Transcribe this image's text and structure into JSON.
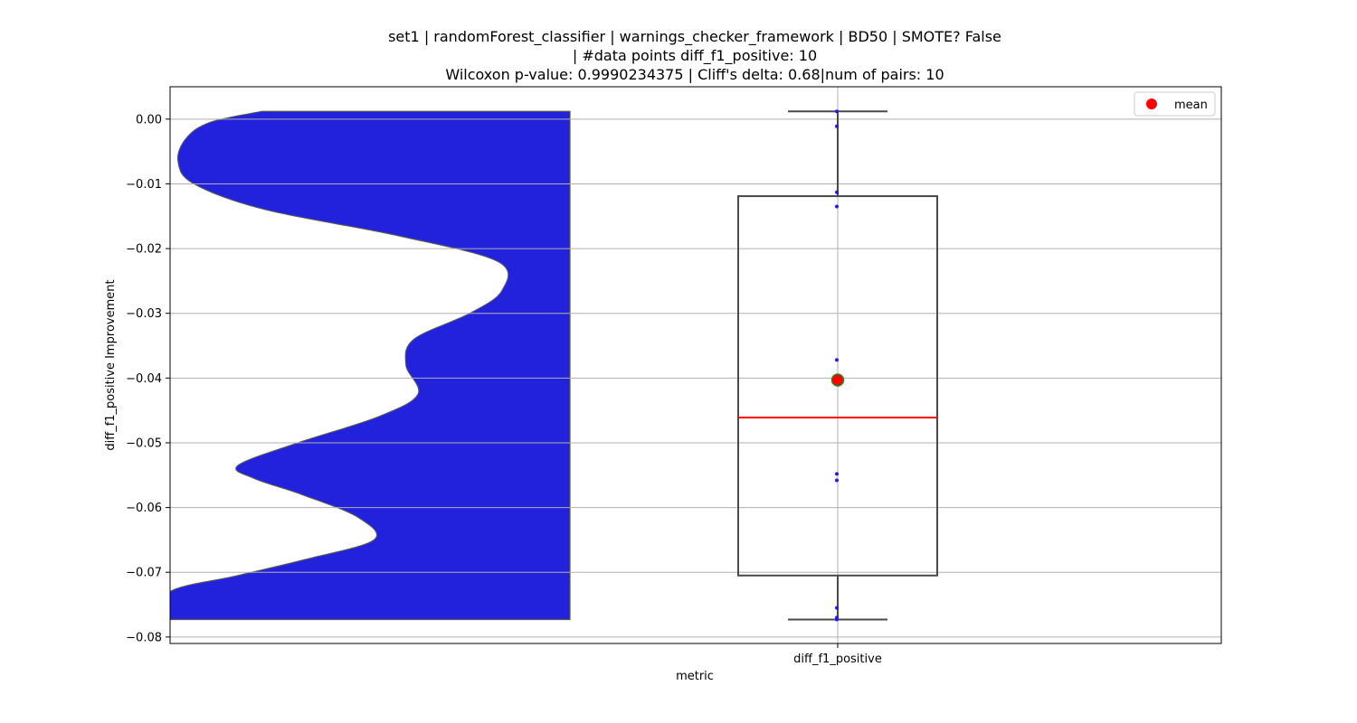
{
  "chart_data": {
    "type": "box",
    "title_lines": [
      "set1 | randomForest_classifier | warnings_checker_framework | BD50 | SMOTE? False",
      "| #data points diff_f1_positive: 10",
      "Wilcoxon p-value: 0.9990234375 | Cliff's delta: 0.68|num of pairs: 10"
    ],
    "xlabel": "metric",
    "ylabel": "diff_f1_positive Improvement",
    "categories": [
      "diff_f1_positive"
    ],
    "ylim": [
      -0.081,
      0.005
    ],
    "yticks": [
      0.0,
      -0.01,
      -0.02,
      -0.03,
      -0.04,
      -0.05,
      -0.06,
      -0.07,
      -0.08
    ],
    "ytick_labels": [
      "0.00",
      "−0.01",
      "−0.02",
      "−0.03",
      "−0.04",
      "−0.05",
      "−0.06",
      "−0.07",
      "−0.08"
    ],
    "grid": true,
    "box": {
      "whisker_low": -0.0773,
      "q1": -0.0705,
      "median": -0.0461,
      "q3": -0.0119,
      "whisker_high": 0.0012,
      "mean": -0.0403
    },
    "points": [
      0.0012,
      -0.0011,
      -0.0113,
      -0.0135,
      -0.0372,
      -0.0548,
      -0.0558,
      -0.0755,
      -0.077,
      -0.0773
    ],
    "violin_profile": [
      [
        0.0012,
        0.77
      ],
      [
        -0.0005,
        0.9
      ],
      [
        -0.003,
        0.96
      ],
      [
        -0.0065,
        0.98
      ],
      [
        -0.01,
        0.94
      ],
      [
        -0.014,
        0.76
      ],
      [
        -0.018,
        0.43
      ],
      [
        -0.022,
        0.18
      ],
      [
        -0.0265,
        0.17
      ],
      [
        -0.03,
        0.25
      ],
      [
        -0.034,
        0.39
      ],
      [
        -0.038,
        0.41
      ],
      [
        -0.0425,
        0.38
      ],
      [
        -0.046,
        0.48
      ],
      [
        -0.05,
        0.68
      ],
      [
        -0.0535,
        0.83
      ],
      [
        -0.0555,
        0.79
      ],
      [
        -0.058,
        0.67
      ],
      [
        -0.0615,
        0.53
      ],
      [
        -0.065,
        0.49
      ],
      [
        -0.068,
        0.66
      ],
      [
        -0.0705,
        0.83
      ],
      [
        -0.073,
        1.0
      ],
      [
        -0.0773,
        1.0
      ]
    ],
    "colors": {
      "violin_fill": "#2222dd",
      "violin_edge": "#555555",
      "box_edge": "#4a4a4a",
      "median": "#ff0000",
      "mean_fill": "#ff0000",
      "mean_edge": "#228b22",
      "points": "#1a1aff",
      "grid": "#b0b0b0"
    },
    "legend": {
      "position": "top-right",
      "entries": [
        {
          "label": "mean",
          "marker": "circle",
          "color": "#ff0000"
        }
      ]
    }
  }
}
